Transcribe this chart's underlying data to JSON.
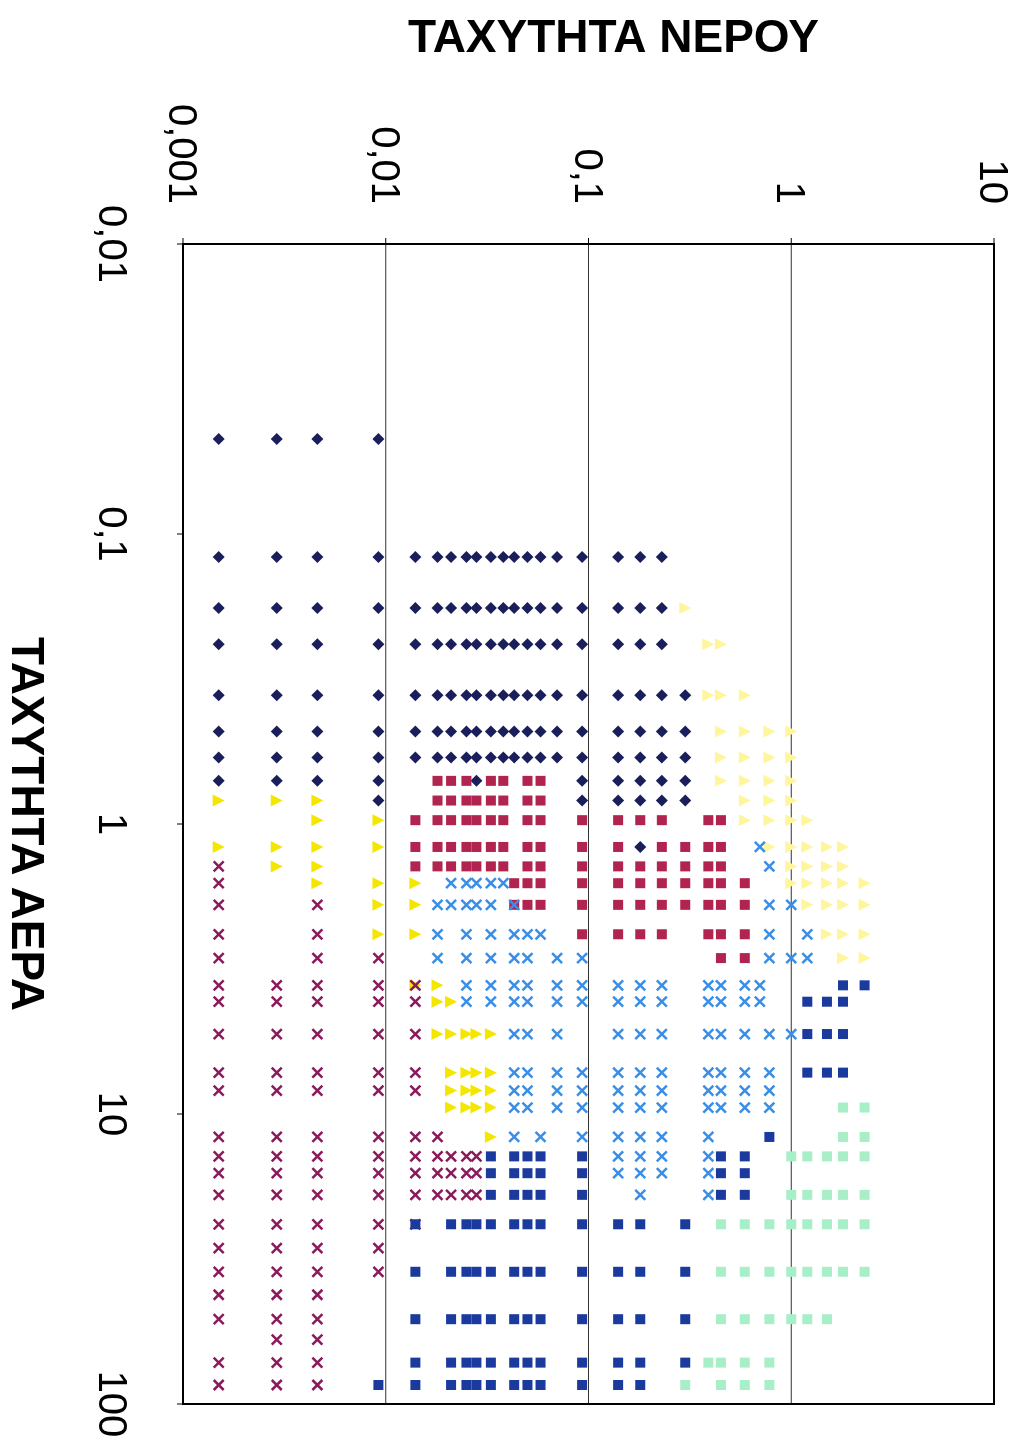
{
  "chart_data": {
    "type": "scatter",
    "xlabel": "ΤΑΧΥΤΗΤΑ ΝΕΡΟΥ",
    "ylabel": "ΤΑΧΥΤΗΤΑ ΑΕΡΑ",
    "log": "xy",
    "grid": "x",
    "xlim": [
      0.001,
      10
    ],
    "xticks": [
      {
        "value": 0.001,
        "label": "0,001"
      },
      {
        "value": 0.01,
        "label": "0,01"
      },
      {
        "value": 0.1,
        "label": "0,1"
      },
      1,
      10
    ],
    "ylim": [
      100,
      0.01
    ],
    "yticks": [
      {
        "value": 0.01,
        "label": "0,01"
      },
      {
        "value": 0.1,
        "label": "0,1"
      },
      1,
      10,
      100
    ],
    "series": [
      {
        "color": "#1a1f5c",
        "marker": "diamond",
        "values": [
          0.047,
          0.047,
          0.047,
          0.047,
          0.12,
          0.12,
          0.12,
          0.12,
          0.12,
          0.12,
          0.12,
          0.12,
          0.12,
          0.12,
          0.12,
          0.12,
          0.12,
          0.12,
          0.12,
          0.12,
          0.12,
          0.12,
          0.12,
          0.18,
          0.18,
          0.18,
          0.18,
          0.18,
          0.18,
          0.18,
          0.18,
          0.18,
          0.18,
          0.18,
          0.18,
          0.18,
          0.18,
          0.18,
          0.18,
          0.18,
          0.18,
          0.18,
          0.24,
          0.24,
          0.24,
          0.24,
          0.24,
          0.24,
          0.24,
          0.24,
          0.24,
          0.24,
          0.24,
          0.24,
          0.24,
          0.24,
          0.24,
          0.24,
          0.24,
          0.24,
          0.24,
          0.36,
          0.36,
          0.36,
          0.36,
          0.36,
          0.36,
          0.36,
          0.36,
          0.36,
          0.36,
          0.36,
          0.36,
          0.36,
          0.36,
          0.36,
          0.36,
          0.36,
          0.36,
          0.36,
          0.36,
          0.48,
          0.48,
          0.48,
          0.48,
          0.48,
          0.48,
          0.48,
          0.48,
          0.48,
          0.48,
          0.48,
          0.48,
          0.48,
          0.48,
          0.48,
          0.48,
          0.48,
          0.48,
          0.48,
          0.48,
          0.59,
          0.59,
          0.59,
          0.59,
          0.59,
          0.59,
          0.59,
          0.59,
          0.59,
          0.59,
          0.59,
          0.59,
          0.59,
          0.59,
          0.59,
          0.59,
          0.59,
          0.59,
          0.59,
          0.59,
          0.71,
          0.71,
          0.71,
          0.71,
          0.71,
          0.71,
          0.71,
          0.71,
          0.71,
          0.71,
          0.83,
          0.83,
          0.83,
          0.83,
          0.83,
          0.83,
          1.2
        ],
        "x": [
          0.0015,
          0.0029,
          0.0046,
          0.0092,
          0.0015,
          0.0029,
          0.0046,
          0.0092,
          0.014,
          0.018,
          0.021,
          0.025,
          0.028,
          0.033,
          0.038,
          0.043,
          0.05,
          0.058,
          0.07,
          0.093,
          0.14,
          0.18,
          0.23,
          0.0015,
          0.0029,
          0.0046,
          0.0092,
          0.014,
          0.018,
          0.021,
          0.025,
          0.028,
          0.033,
          0.038,
          0.043,
          0.05,
          0.058,
          0.07,
          0.093,
          0.14,
          0.18,
          0.23,
          0.0015,
          0.0029,
          0.0046,
          0.0092,
          0.014,
          0.018,
          0.021,
          0.025,
          0.028,
          0.033,
          0.038,
          0.043,
          0.05,
          0.058,
          0.07,
          0.093,
          0.14,
          0.18,
          0.23,
          0.0015,
          0.0029,
          0.0046,
          0.0092,
          0.014,
          0.018,
          0.021,
          0.025,
          0.028,
          0.033,
          0.038,
          0.043,
          0.05,
          0.058,
          0.07,
          0.093,
          0.14,
          0.18,
          0.23,
          0.3,
          0.0015,
          0.0029,
          0.0046,
          0.0092,
          0.014,
          0.018,
          0.021,
          0.025,
          0.028,
          0.033,
          0.038,
          0.043,
          0.05,
          0.058,
          0.07,
          0.093,
          0.14,
          0.18,
          0.23,
          0.3,
          0.0015,
          0.0029,
          0.0046,
          0.0092,
          0.014,
          0.018,
          0.021,
          0.025,
          0.028,
          0.033,
          0.038,
          0.043,
          0.05,
          0.058,
          0.07,
          0.093,
          0.14,
          0.18,
          0.23,
          0.3,
          0.0015,
          0.0029,
          0.0046,
          0.0092,
          0.028,
          0.093,
          0.14,
          0.18,
          0.23,
          0.3,
          0.0092,
          0.093,
          0.14,
          0.18,
          0.23,
          0.3,
          0.18
        ]
      },
      {
        "color": "#b0244f",
        "marker": "square",
        "values": [
          0.71,
          0.71,
          0.71,
          0.71,
          0.71,
          0.71,
          0.71,
          0.83,
          0.83,
          0.83,
          0.83,
          0.83,
          0.83,
          0.83,
          0.83,
          0.97,
          0.97,
          0.97,
          0.97,
          0.97,
          0.97,
          0.97,
          0.97,
          0.97,
          0.97,
          0.97,
          0.97,
          0.97,
          0.97,
          0.97,
          1.2,
          1.2,
          1.2,
          1.2,
          1.2,
          1.2,
          1.2,
          1.2,
          1.2,
          1.2,
          1.2,
          1.2,
          1.2,
          1.2,
          1.2,
          1.4,
          1.4,
          1.4,
          1.4,
          1.4,
          1.4,
          1.4,
          1.4,
          1.4,
          1.4,
          1.4,
          1.4,
          1.4,
          1.4,
          1.4,
          1.4,
          1.6,
          1.6,
          1.6,
          1.6,
          1.6,
          1.6,
          1.6,
          1.6,
          1.6,
          1.6,
          1.6,
          1.9,
          1.9,
          1.9,
          1.9,
          1.9,
          1.9,
          1.9,
          1.9,
          1.9,
          1.9,
          1.9,
          2.4,
          2.4,
          2.4,
          2.4,
          2.4,
          2.4,
          2.4,
          2.9,
          2.9
        ],
        "x": [
          0.018,
          0.021,
          0.025,
          0.033,
          0.038,
          0.05,
          0.058,
          0.018,
          0.021,
          0.025,
          0.028,
          0.033,
          0.038,
          0.05,
          0.058,
          0.014,
          0.018,
          0.021,
          0.025,
          0.028,
          0.033,
          0.038,
          0.05,
          0.058,
          0.093,
          0.14,
          0.18,
          0.23,
          0.39,
          0.45,
          0.014,
          0.018,
          0.021,
          0.025,
          0.028,
          0.033,
          0.038,
          0.05,
          0.058,
          0.093,
          0.14,
          0.23,
          0.3,
          0.39,
          0.45,
          0.014,
          0.018,
          0.021,
          0.025,
          0.028,
          0.033,
          0.038,
          0.05,
          0.058,
          0.093,
          0.14,
          0.18,
          0.23,
          0.3,
          0.39,
          0.45,
          0.043,
          0.05,
          0.058,
          0.093,
          0.14,
          0.18,
          0.23,
          0.3,
          0.39,
          0.45,
          0.59,
          0.043,
          0.05,
          0.058,
          0.093,
          0.14,
          0.18,
          0.23,
          0.3,
          0.39,
          0.45,
          0.59,
          0.093,
          0.14,
          0.18,
          0.23,
          0.39,
          0.45,
          0.59,
          0.45,
          0.59
        ]
      },
      {
        "color": "#f5e600",
        "marker": "triangle",
        "values": [
          0.83,
          1.2,
          0.83,
          1.2,
          1.4,
          0.83,
          0.97,
          1.2,
          1.4,
          1.6,
          0.97,
          1.2,
          1.6,
          1.9,
          2.4,
          1.6,
          1.9,
          2.4,
          3.6,
          3.6,
          4.1,
          5.3,
          4.1,
          5.3,
          7.2,
          8.3,
          9.5,
          5.3,
          7.2,
          8.3,
          9.5,
          5.3,
          7.2,
          8.3,
          9.5,
          5.3,
          7.2,
          8.3,
          9.5,
          12
        ],
        "x": [
          0.0015,
          0.0015,
          0.0029,
          0.0029,
          0.0029,
          0.0046,
          0.0046,
          0.0046,
          0.0046,
          0.0046,
          0.0092,
          0.0092,
          0.0092,
          0.0092,
          0.0092,
          0.014,
          0.014,
          0.014,
          0.014,
          0.018,
          0.018,
          0.018,
          0.021,
          0.021,
          0.021,
          0.021,
          0.021,
          0.025,
          0.025,
          0.025,
          0.025,
          0.028,
          0.028,
          0.028,
          0.028,
          0.033,
          0.033,
          0.033,
          0.033,
          0.033
        ]
      },
      {
        "color": "#fff59a",
        "marker": "triangle",
        "values": [
          0.18,
          0.24,
          0.24,
          0.36,
          0.36,
          0.36,
          0.48,
          0.48,
          0.48,
          0.48,
          0.59,
          0.59,
          0.59,
          0.59,
          0.71,
          0.71,
          0.71,
          0.71,
          0.83,
          0.83,
          0.83,
          0.97,
          0.97,
          0.97,
          0.97,
          1.2,
          1.2,
          1.2,
          1.2,
          1.2,
          1.4,
          1.4,
          1.4,
          1.4,
          1.6,
          1.6,
          1.6,
          1.6,
          1.6,
          1.9,
          1.9,
          1.9,
          1.9,
          2.4,
          2.4,
          2.4,
          2.9,
          2.9
        ],
        "x": [
          0.3,
          0.39,
          0.45,
          0.39,
          0.45,
          0.59,
          0.45,
          0.59,
          0.78,
          1.0,
          0.45,
          0.59,
          0.78,
          1.0,
          0.45,
          0.59,
          0.78,
          1.0,
          0.59,
          0.78,
          1.0,
          0.59,
          0.78,
          1.0,
          1.2,
          0.78,
          1.0,
          1.2,
          1.5,
          1.8,
          1.0,
          1.2,
          1.5,
          1.8,
          1.0,
          1.2,
          1.5,
          1.8,
          2.3,
          1.2,
          1.5,
          1.8,
          2.3,
          1.5,
          1.8,
          2.3,
          1.8,
          2.3
        ]
      },
      {
        "color": "#8b1a5c",
        "marker": "cross",
        "values": [
          1.4,
          1.6,
          1.9,
          2.4,
          2.9,
          3.6,
          4.1,
          5.3,
          7.2,
          8.3,
          12,
          14,
          16,
          19,
          24,
          29,
          35,
          42,
          51,
          72,
          86,
          3.6,
          4.1,
          5.3,
          7.2,
          8.3,
          12,
          14,
          16,
          19,
          24,
          29,
          35,
          42,
          51,
          60,
          72,
          86,
          1.9,
          2.4,
          2.9,
          3.6,
          4.1,
          5.3,
          7.2,
          8.3,
          12,
          14,
          16,
          19,
          24,
          29,
          35,
          42,
          51,
          60,
          72,
          86,
          2.9,
          3.6,
          4.1,
          5.3,
          7.2,
          8.3,
          12,
          14,
          16,
          19,
          24,
          29,
          35,
          3.6,
          4.1,
          5.3,
          7.2,
          8.3,
          12,
          14,
          16,
          19,
          24,
          12,
          14,
          16,
          19,
          14,
          16,
          19,
          14,
          16,
          19,
          14,
          16,
          19
        ],
        "x": [
          0.0015,
          0.0015,
          0.0015,
          0.0015,
          0.0015,
          0.0015,
          0.0015,
          0.0015,
          0.0015,
          0.0015,
          0.0015,
          0.0015,
          0.0015,
          0.0015,
          0.0015,
          0.0015,
          0.0015,
          0.0015,
          0.0015,
          0.0015,
          0.0015,
          0.0029,
          0.0029,
          0.0029,
          0.0029,
          0.0029,
          0.0029,
          0.0029,
          0.0029,
          0.0029,
          0.0029,
          0.0029,
          0.0029,
          0.0029,
          0.0029,
          0.0029,
          0.0029,
          0.0029,
          0.0046,
          0.0046,
          0.0046,
          0.0046,
          0.0046,
          0.0046,
          0.0046,
          0.0046,
          0.0046,
          0.0046,
          0.0046,
          0.0046,
          0.0046,
          0.0046,
          0.0046,
          0.0046,
          0.0046,
          0.0046,
          0.0046,
          0.0046,
          0.0092,
          0.0092,
          0.0092,
          0.0092,
          0.0092,
          0.0092,
          0.0092,
          0.0092,
          0.0092,
          0.0092,
          0.0092,
          0.0092,
          0.0092,
          0.014,
          0.014,
          0.014,
          0.014,
          0.014,
          0.014,
          0.014,
          0.014,
          0.014,
          0.014,
          0.018,
          0.018,
          0.018,
          0.018,
          0.021,
          0.021,
          0.021,
          0.025,
          0.025,
          0.025,
          0.028,
          0.028,
          0.028
        ]
      },
      {
        "color": "#3a8ee6",
        "marker": "cross",
        "values": [
          1.6,
          1.6,
          1.6,
          1.6,
          1.6,
          1.9,
          1.9,
          1.9,
          1.9,
          1.9,
          1.9,
          2.4,
          2.4,
          2.4,
          2.4,
          2.4,
          2.4,
          2.9,
          2.9,
          2.9,
          2.9,
          2.9,
          2.9,
          2.9,
          3.6,
          3.6,
          3.6,
          3.6,
          3.6,
          3.6,
          3.6,
          3.6,
          3.6,
          3.6,
          3.6,
          3.6,
          3.6,
          4.1,
          4.1,
          4.1,
          4.1,
          4.1,
          4.1,
          4.1,
          4.1,
          4.1,
          4.1,
          4.1,
          4.1,
          4.1,
          5.3,
          5.3,
          5.3,
          5.3,
          5.3,
          5.3,
          5.3,
          5.3,
          5.3,
          5.3,
          5.3,
          7.2,
          7.2,
          7.2,
          7.2,
          7.2,
          7.2,
          7.2,
          7.2,
          7.2,
          7.2,
          7.2,
          8.3,
          8.3,
          8.3,
          8.3,
          8.3,
          8.3,
          8.3,
          8.3,
          8.3,
          8.3,
          8.3,
          9.5,
          9.5,
          9.5,
          9.5,
          9.5,
          9.5,
          9.5,
          9.5,
          9.5,
          9.5,
          9.5,
          12,
          12,
          12,
          12,
          12,
          12,
          12,
          14,
          14,
          14,
          14,
          16,
          16,
          16,
          16,
          19,
          19,
          1.2,
          1.4,
          1.9,
          1.9,
          2.4,
          2.4,
          2.9,
          2.9,
          2.9
        ],
        "x": [
          0.021,
          0.025,
          0.028,
          0.033,
          0.038,
          0.018,
          0.021,
          0.025,
          0.028,
          0.033,
          0.043,
          0.018,
          0.025,
          0.033,
          0.043,
          0.05,
          0.058,
          0.018,
          0.025,
          0.033,
          0.043,
          0.05,
          0.07,
          0.093,
          0.025,
          0.033,
          0.043,
          0.05,
          0.07,
          0.093,
          0.14,
          0.18,
          0.23,
          0.39,
          0.45,
          0.59,
          0.7,
          0.025,
          0.033,
          0.043,
          0.05,
          0.07,
          0.093,
          0.14,
          0.18,
          0.23,
          0.39,
          0.45,
          0.59,
          0.7,
          0.043,
          0.05,
          0.07,
          0.14,
          0.18,
          0.23,
          0.39,
          0.45,
          0.59,
          0.78,
          1.0,
          0.043,
          0.05,
          0.07,
          0.093,
          0.14,
          0.18,
          0.23,
          0.39,
          0.45,
          0.59,
          0.78,
          0.043,
          0.05,
          0.07,
          0.093,
          0.14,
          0.18,
          0.23,
          0.39,
          0.45,
          0.59,
          0.78,
          0.043,
          0.05,
          0.07,
          0.093,
          0.14,
          0.18,
          0.23,
          0.39,
          0.45,
          0.59,
          0.78,
          0.043,
          0.058,
          0.093,
          0.14,
          0.18,
          0.23,
          0.39,
          0.14,
          0.18,
          0.23,
          0.39,
          0.14,
          0.18,
          0.23,
          0.39,
          0.18,
          0.39,
          0.7,
          0.78,
          0.78,
          1.0,
          0.78,
          1.2,
          0.78,
          1.0,
          1.2
        ]
      },
      {
        "color": "#1a3a9e",
        "marker": "square",
        "values": [
          14,
          14,
          14,
          14,
          14,
          14,
          14,
          16,
          16,
          16,
          16,
          16,
          16,
          16,
          19,
          19,
          19,
          19,
          19,
          19,
          19,
          24,
          24,
          24,
          24,
          24,
          24,
          24,
          24,
          24,
          24,
          24,
          24,
          35,
          35,
          35,
          35,
          35,
          35,
          35,
          35,
          35,
          35,
          35,
          35,
          51,
          51,
          51,
          51,
          51,
          51,
          51,
          51,
          51,
          51,
          51,
          51,
          72,
          72,
          72,
          72,
          72,
          72,
          72,
          72,
          72,
          72,
          72,
          72,
          86,
          86,
          86,
          86,
          86,
          86,
          86,
          86,
          86,
          86,
          86,
          86,
          3.6,
          3.6,
          4.1,
          4.1,
          4.1,
          5.3,
          5.3,
          5.3,
          7.2,
          7.2,
          7.2,
          12
        ],
        "x": [
          0.033,
          0.043,
          0.05,
          0.058,
          0.093,
          0.45,
          0.59,
          0.033,
          0.043,
          0.05,
          0.058,
          0.093,
          0.45,
          0.59,
          0.033,
          0.043,
          0.05,
          0.058,
          0.093,
          0.45,
          0.59,
          0.014,
          0.021,
          0.025,
          0.028,
          0.033,
          0.043,
          0.05,
          0.058,
          0.093,
          0.14,
          0.18,
          0.3,
          0.014,
          0.021,
          0.025,
          0.028,
          0.033,
          0.043,
          0.05,
          0.058,
          0.093,
          0.14,
          0.18,
          0.3,
          0.014,
          0.021,
          0.025,
          0.028,
          0.033,
          0.043,
          0.05,
          0.058,
          0.093,
          0.14,
          0.18,
          0.3,
          0.014,
          0.021,
          0.025,
          0.028,
          0.033,
          0.043,
          0.05,
          0.058,
          0.093,
          0.14,
          0.18,
          0.3,
          0.0092,
          0.014,
          0.021,
          0.025,
          0.028,
          0.033,
          0.043,
          0.05,
          0.058,
          0.093,
          0.14,
          0.18,
          1.8,
          2.3,
          1.2,
          1.5,
          1.8,
          1.2,
          1.5,
          1.8,
          1.2,
          1.5,
          1.8,
          0.78
        ]
      },
      {
        "color": "#a8efc8",
        "marker": "square",
        "values": [
          9.5,
          9.5,
          12,
          12,
          14,
          14,
          14,
          14,
          14,
          19,
          19,
          19,
          19,
          19,
          24,
          24,
          24,
          24,
          24,
          24,
          24,
          24,
          35,
          35,
          35,
          35,
          35,
          35,
          35,
          35,
          51,
          51,
          51,
          51,
          51,
          51,
          72,
          72,
          72,
          72,
          86,
          86,
          86,
          86
        ],
        "x": [
          1.8,
          2.3,
          1.8,
          2.3,
          1.0,
          1.2,
          1.5,
          1.8,
          2.3,
          1.0,
          1.2,
          1.5,
          1.8,
          2.3,
          0.45,
          0.59,
          0.78,
          1.0,
          1.2,
          1.5,
          1.8,
          2.3,
          0.45,
          0.59,
          0.78,
          1.0,
          1.2,
          1.5,
          1.8,
          2.3,
          0.45,
          0.59,
          0.78,
          1.0,
          1.2,
          1.5,
          0.39,
          0.45,
          0.59,
          0.78,
          0.3,
          0.45,
          0.59,
          0.78
        ]
      }
    ]
  }
}
